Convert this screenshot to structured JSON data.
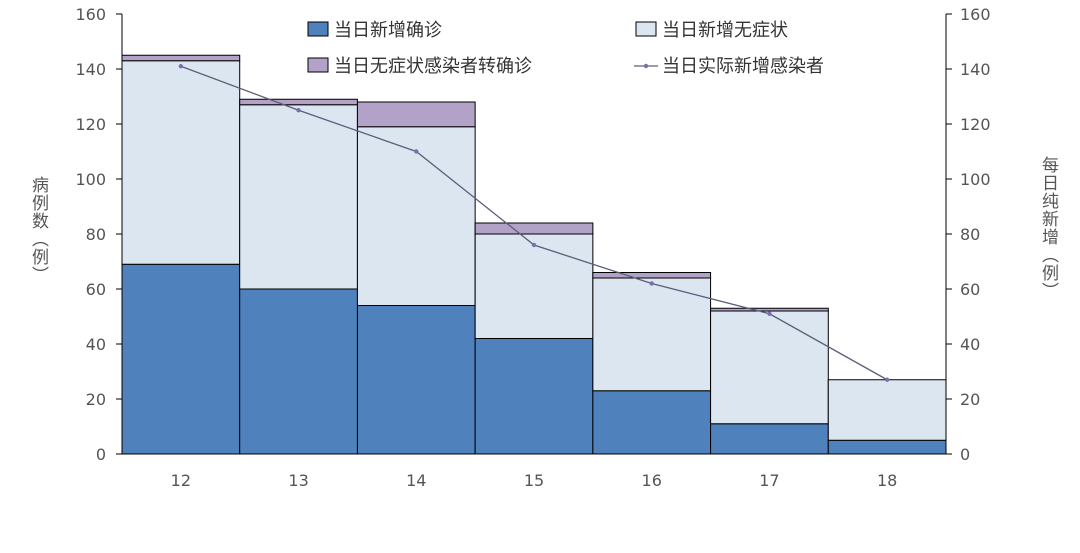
{
  "chart_data": {
    "type": "bar",
    "stacked": true,
    "categories": [
      "12",
      "13",
      "14",
      "15",
      "16",
      "17",
      "18"
    ],
    "series": [
      {
        "name": "当日新增确诊",
        "kind": "bar",
        "color": "#4f81bd",
        "values": [
          69,
          60,
          54,
          42,
          23,
          11,
          5
        ]
      },
      {
        "name": "当日新增无症状",
        "kind": "bar",
        "color": "#dce6f1",
        "values": [
          74,
          67,
          65,
          38,
          41,
          41,
          22
        ]
      },
      {
        "name": "当日无症状感染者转确诊",
        "kind": "bar",
        "color": "#b3a2c7",
        "values": [
          2,
          2,
          9,
          4,
          2,
          1,
          0
        ]
      },
      {
        "name": "当日实际新增感染者",
        "kind": "line",
        "color": "#5a5f7a",
        "values": [
          141,
          125,
          110,
          76,
          62,
          51,
          27
        ]
      }
    ],
    "ylabel": "病例数（例）",
    "y2label": "每日纯新增（例）",
    "ylim": [
      0,
      160
    ],
    "y2lim": [
      0,
      160
    ],
    "yticks": [
      0,
      20,
      40,
      60,
      80,
      100,
      120,
      140,
      160
    ],
    "grid": false,
    "legend_position": "top"
  }
}
